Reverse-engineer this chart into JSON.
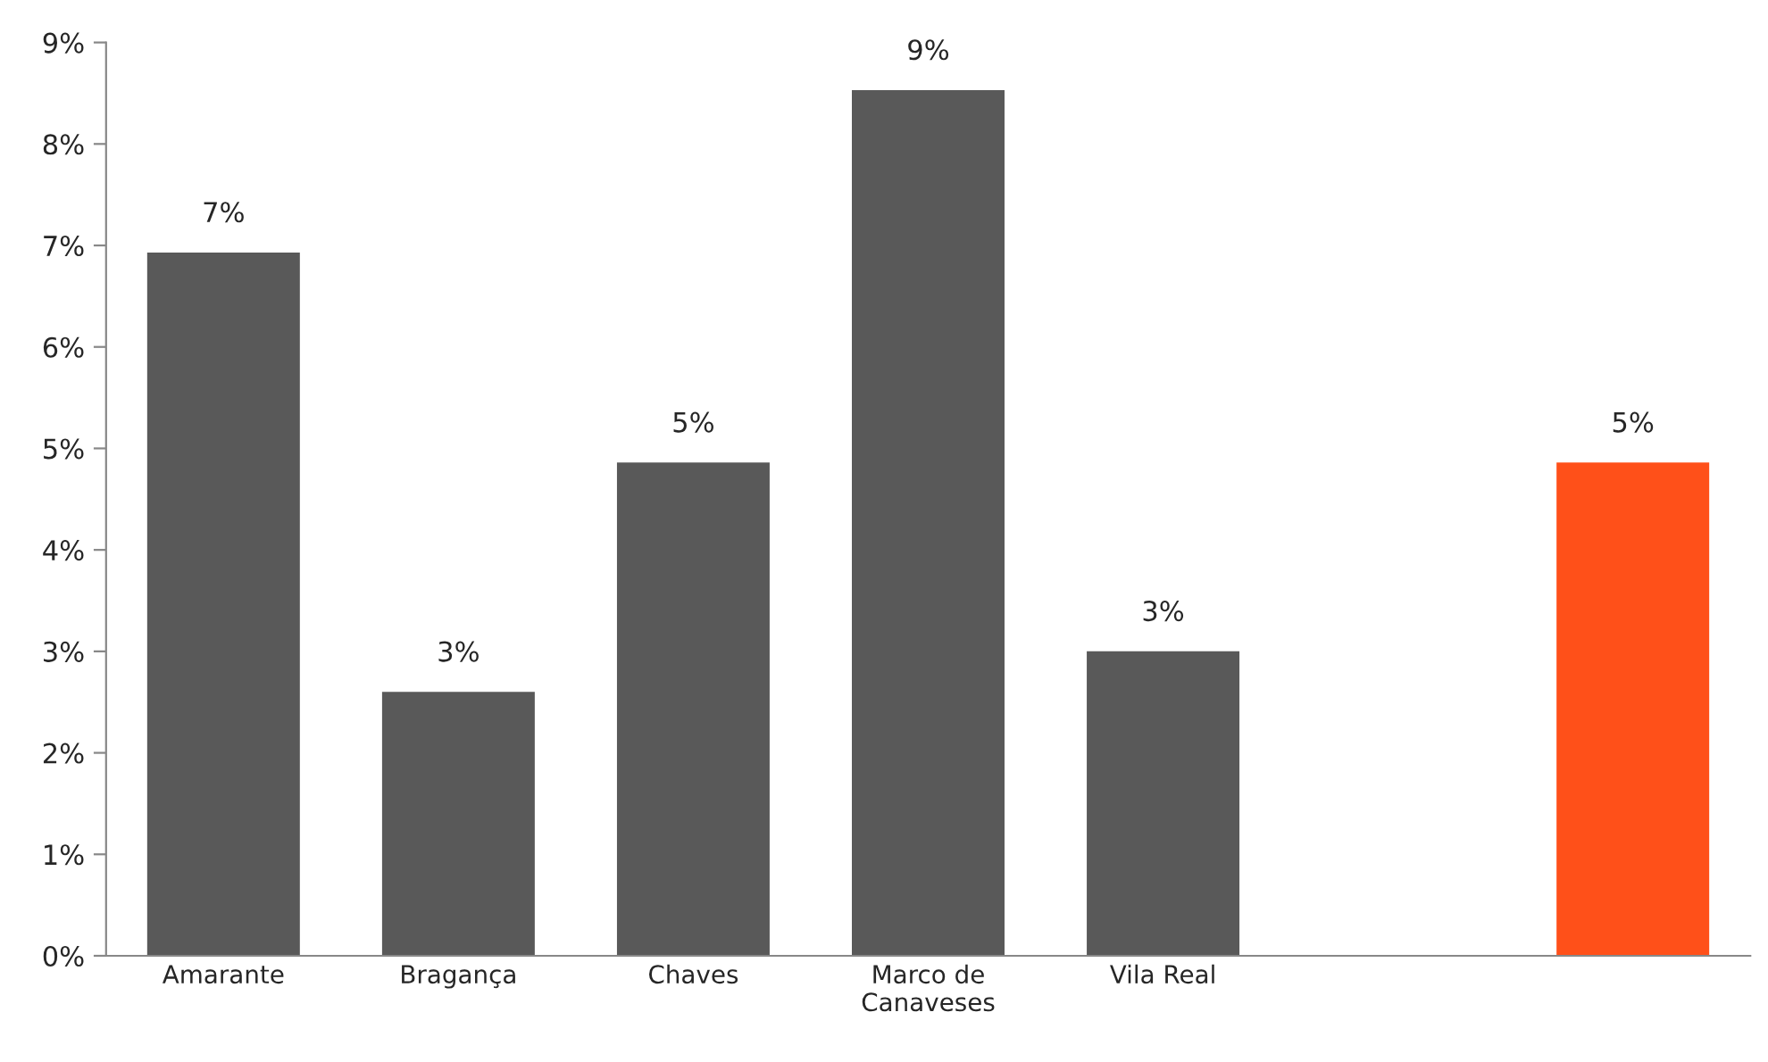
{
  "chart_data": {
    "type": "bar",
    "categories": [
      "Amarante",
      "Bragança",
      "Chaves",
      "Marco de\nCanaveses",
      "Vila Real",
      null,
      null
    ],
    "values": [
      6.93,
      2.6,
      4.86,
      8.53,
      3.0,
      null,
      4.86
    ],
    "colors": [
      "#595959",
      "#595959",
      "#595959",
      "#595959",
      "#595959",
      "#595959",
      "#ff5019"
    ],
    "value_labels": [
      "7%",
      "3%",
      "5%",
      "9%",
      "3%",
      null,
      "5%"
    ],
    "ylim": [
      0,
      9
    ],
    "yticks": [
      {
        "value": 0,
        "label": "0%"
      },
      {
        "value": 1,
        "label": "1%"
      },
      {
        "value": 2,
        "label": "2%"
      },
      {
        "value": 3,
        "label": "3%"
      },
      {
        "value": 4,
        "label": "4%"
      },
      {
        "value": 5,
        "label": "5%"
      },
      {
        "value": 6,
        "label": "6%"
      },
      {
        "value": 7,
        "label": "7%"
      },
      {
        "value": 8,
        "label": "8%"
      },
      {
        "value": 9,
        "label": "9%"
      }
    ],
    "grid": false,
    "legend": false
  }
}
